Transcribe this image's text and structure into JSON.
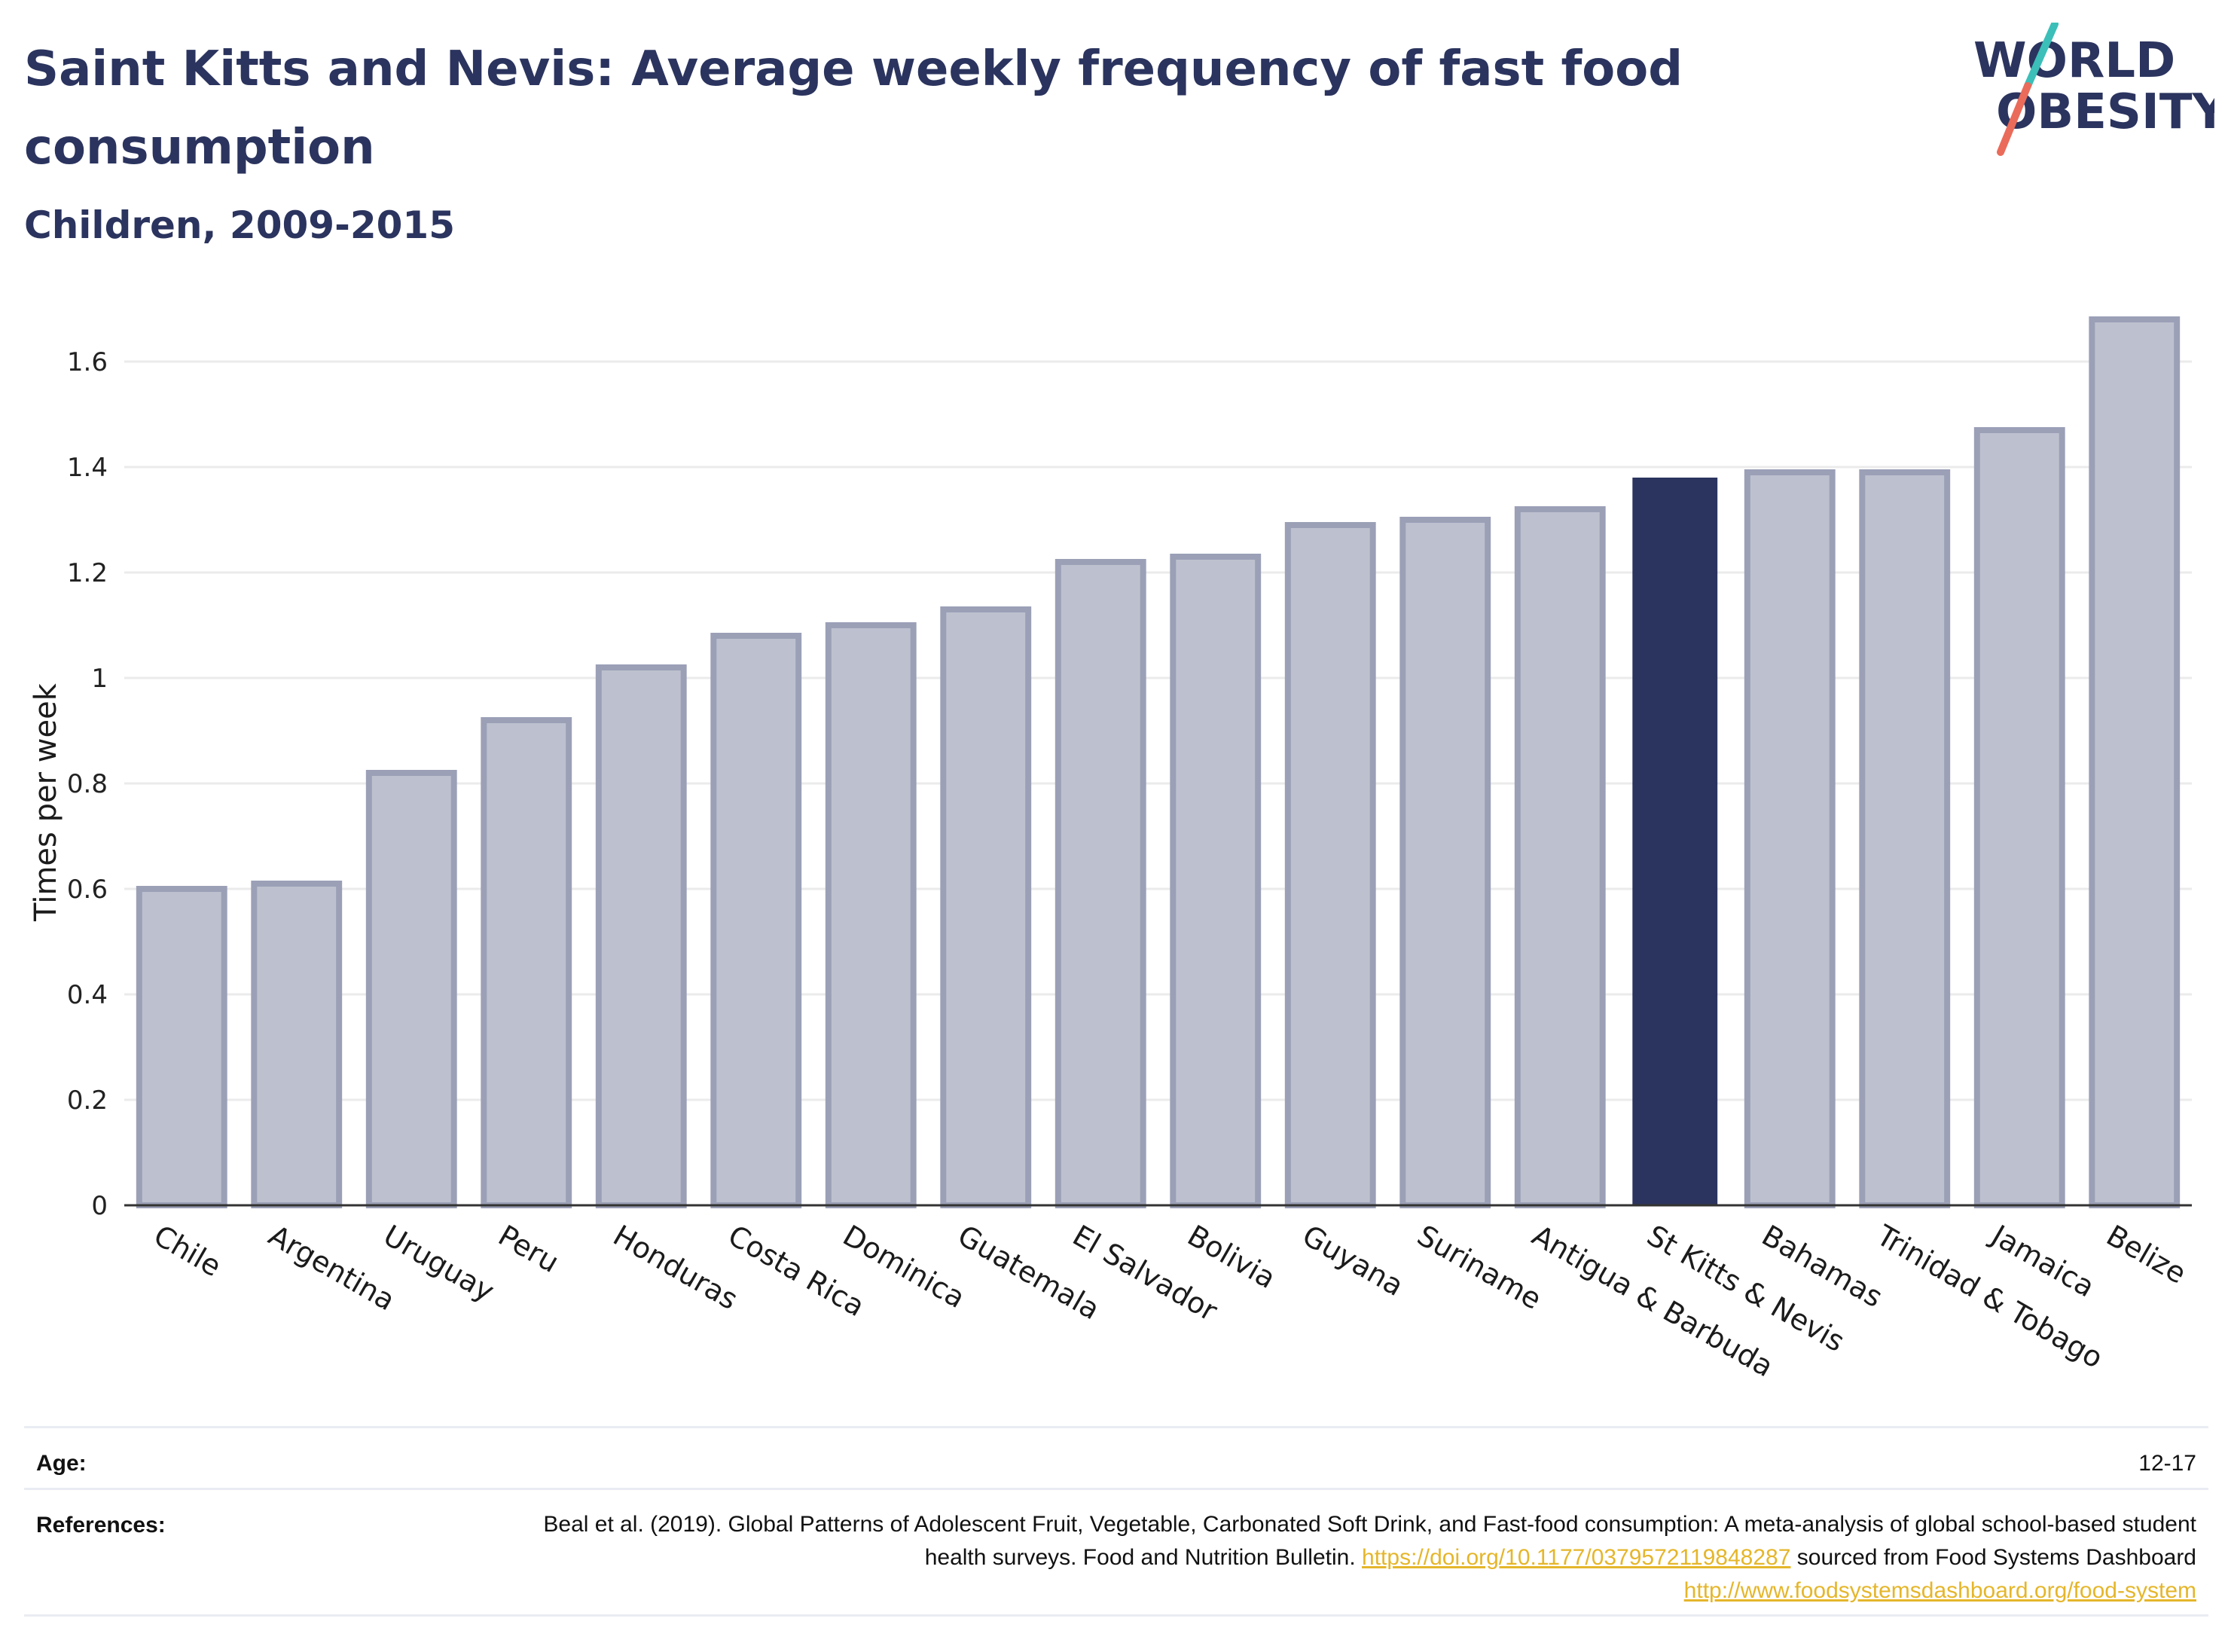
{
  "header": {
    "title": "Saint Kitts and Nevis: Average weekly frequency of fast food consumption",
    "subtitle": "Children, 2009-2015"
  },
  "logo": {
    "line1": "WORLD",
    "line2": "OBESITY",
    "colors": {
      "text": "#2b345e",
      "slash_top": "#3bbfb8",
      "slash_bottom": "#ea6b5a"
    }
  },
  "colors": {
    "bar": "#bdc1cf",
    "bar_border": "#9ba0b7",
    "highlight": "#2b345e",
    "grid": "#ebebeb",
    "axis": "#333333"
  },
  "chart_data": {
    "type": "bar",
    "title": "Saint Kitts and Nevis: Average weekly frequency of fast food consumption",
    "subtitle": "Children, 2009-2015",
    "xlabel": "",
    "ylabel": "Times per week",
    "ylim": [
      0,
      1.7
    ],
    "yticks": [
      0,
      0.2,
      0.4,
      0.6,
      0.8,
      1,
      1.2,
      1.4,
      1.6
    ],
    "ytick_labels": [
      "0",
      "0.2",
      "0.4",
      "0.6",
      "0.8",
      "1",
      "1.2",
      "1.4",
      "1.6"
    ],
    "grid": true,
    "categories": [
      "Chile",
      "Argentina",
      "Uruguay",
      "Peru",
      "Honduras",
      "Costa Rica",
      "Dominica",
      "Guatemala",
      "El Salvador",
      "Bolivia",
      "Guyana",
      "Suriname",
      "Antigua & Barbuda",
      "St Kitts & Nevis",
      "Bahamas",
      "Trinidad & Tobago",
      "Jamaica",
      "Belize"
    ],
    "values": [
      0.6,
      0.61,
      0.82,
      0.92,
      1.02,
      1.08,
      1.1,
      1.13,
      1.22,
      1.23,
      1.29,
      1.3,
      1.32,
      1.38,
      1.39,
      1.39,
      1.47,
      1.68
    ],
    "highlight": "St Kitts & Nevis"
  },
  "meta": {
    "age_label": "Age:",
    "age_value": "12-17",
    "references_label": "References:",
    "references_text_1": "Beal et al. (2019). Global Patterns of Adolescent Fruit, Vegetable, Carbonated Soft Drink, and Fast-food consumption: A meta-analysis of global school-based student health surveys. Food and Nutrition Bulletin.",
    "references_link_1": "https://doi.org/10.1177/0379572119848287",
    "references_text_2": "sourced from Food Systems Dashboard",
    "references_link_2": "http://www.foodsystemsdashboard.org/food-system"
  }
}
